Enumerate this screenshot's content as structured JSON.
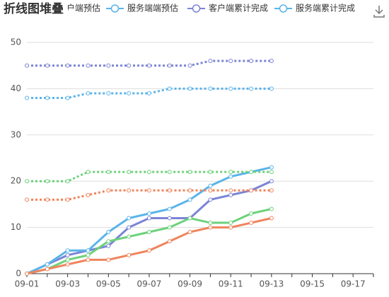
{
  "chart_data": {
    "type": "line",
    "title": "折线图堆叠",
    "categories": [
      "09-01",
      null,
      "09-03",
      null,
      "09-05",
      null,
      "09-07",
      null,
      "09-09",
      null,
      "09-11",
      null,
      "09-13",
      null,
      "09-15",
      null,
      "09-17",
      null
    ],
    "ylim": [
      0,
      50
    ],
    "yticks": [
      0,
      10,
      20,
      30,
      40,
      50
    ],
    "grid": true,
    "series": [
      {
        "name": "客户端预估",
        "color": "#7b84d6",
        "line_style": "dotted",
        "values": [
          45,
          45,
          45,
          45,
          45,
          45,
          45,
          45,
          45,
          46,
          46,
          46,
          46,
          null,
          null,
          null,
          null,
          null
        ]
      },
      {
        "name": "服务端端预估",
        "color": "#5ab4ea",
        "line_style": "dotted",
        "values": [
          38,
          38,
          38,
          39,
          39,
          39,
          39,
          40,
          40,
          40,
          40,
          40,
          40,
          null,
          null,
          null,
          null,
          null
        ]
      },
      {
        "name": "客户端累计完成",
        "color": "#7b84d6",
        "line_style": "solid",
        "values": [
          0,
          2,
          4,
          5,
          6,
          10,
          12,
          12,
          12,
          16,
          17,
          18,
          20,
          null,
          null,
          null,
          null,
          null
        ]
      },
      {
        "name": "服务端累计完成",
        "color": "#5ab4ea",
        "line_style": "solid",
        "values": [
          0,
          2,
          5,
          5,
          9,
          12,
          13,
          14,
          16,
          19,
          21,
          22,
          23,
          null,
          null,
          null,
          null,
          null
        ]
      },
      {
        "color": "#6cd27a",
        "line_style": "dotted",
        "values": [
          20,
          20,
          20,
          22,
          22,
          22,
          22,
          22,
          22,
          22,
          22,
          22,
          22,
          null,
          null,
          null,
          null,
          null
        ]
      },
      {
        "color": "#f0845c",
        "line_style": "dotted",
        "values": [
          16,
          16,
          16,
          17,
          18,
          18,
          18,
          18,
          18,
          18,
          18,
          18,
          18,
          null,
          null,
          null,
          null,
          null
        ]
      },
      {
        "color": "#6cd27a",
        "line_style": "solid",
        "values": [
          0,
          1,
          3,
          4,
          7,
          8,
          9,
          10,
          12,
          11,
          11,
          13,
          14,
          null,
          null,
          null,
          null,
          null
        ]
      },
      {
        "color": "#f0845c",
        "line_style": "solid",
        "values": [
          0,
          1,
          2,
          3,
          3,
          4,
          5,
          7,
          9,
          10,
          10,
          11,
          12,
          null,
          null,
          null,
          null,
          null
        ]
      }
    ]
  }
}
